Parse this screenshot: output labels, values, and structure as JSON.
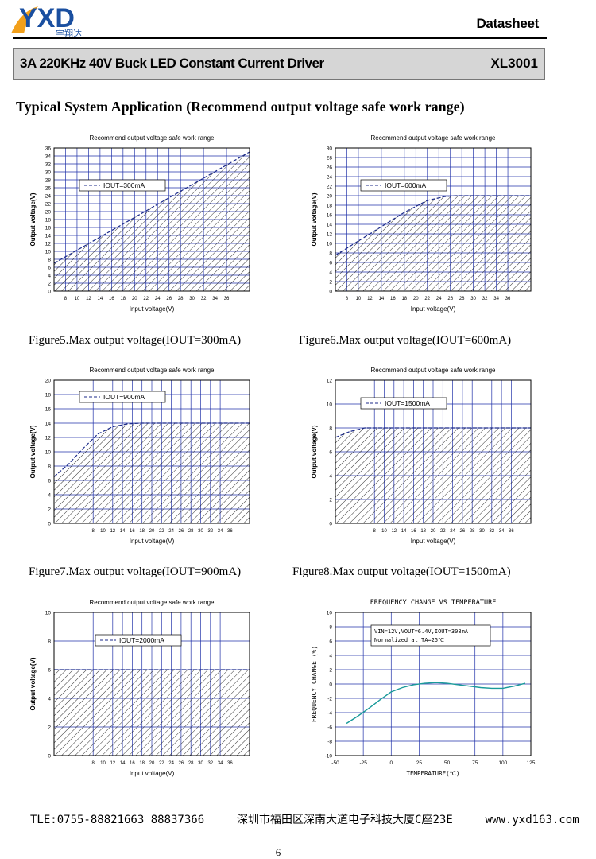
{
  "header": {
    "logo_text": "YXD",
    "logo_subtext": "宇翔达",
    "doc_type": "Datasheet",
    "title": "3A 220KHz 40V Buck LED Constant Current Driver",
    "part": "XL3001"
  },
  "section_title": "Typical System Application (Recommend output voltage safe work range)",
  "captions": [
    "Figure5.Max output voltage(IOUT=300mA)",
    "Figure6.Max output voltage(IOUT=600mA)",
    "Figure7.Max output voltage(IOUT=900mA)",
    "Figure8.Max output voltage(IOUT=1500mA)"
  ],
  "footer": {
    "tel": "TLE:0755-88821663  88837366",
    "address": "深圳市福田区深南大道电子科技大厦C座23E",
    "web": "www.yxd163.com"
  },
  "page_number": "6",
  "chart_data": [
    {
      "type": "area",
      "title": "Recommend output voltage safe work range",
      "xlabel": "Input voltage(V)",
      "ylabel": "Output voltage(V)",
      "xlim": [
        6,
        40
      ],
      "ylim": [
        0,
        36
      ],
      "xticks": [
        8,
        10,
        12,
        14,
        16,
        18,
        20,
        22,
        24,
        26,
        28,
        30,
        32,
        34,
        36
      ],
      "yticks": [
        0,
        2,
        4,
        6,
        8,
        10,
        12,
        14,
        16,
        18,
        20,
        22,
        24,
        26,
        28,
        30,
        32,
        34,
        36
      ],
      "legend": "IOUT=300mA",
      "legend_position": "top-left",
      "grid": true,
      "series": [
        {
          "name": "IOUT=300mA",
          "x": [
            6,
            40
          ],
          "y": [
            7,
            35
          ]
        }
      ]
    },
    {
      "type": "area",
      "title": "Recommend output voltage safe work range",
      "xlabel": "Input voltage(V)",
      "ylabel": "Output voltage(V)",
      "xlim": [
        6,
        40
      ],
      "ylim": [
        0,
        30
      ],
      "xticks": [
        8,
        10,
        12,
        14,
        16,
        18,
        20,
        22,
        24,
        26,
        28,
        30,
        32,
        34,
        36
      ],
      "yticks": [
        0,
        2,
        4,
        6,
        8,
        10,
        12,
        14,
        16,
        18,
        20,
        22,
        24,
        26,
        28,
        30
      ],
      "legend": "IOUT=600mA",
      "legend_position": "top-left",
      "grid": true,
      "series": [
        {
          "name": "IOUT=600mA",
          "x": [
            6,
            10,
            14,
            18,
            22,
            25,
            27,
            29,
            40
          ],
          "y": [
            7.5,
            10.5,
            13.5,
            16.5,
            19,
            19.8,
            20,
            20,
            20
          ]
        }
      ]
    },
    {
      "type": "area",
      "title": "Recommend output voltage safe work range",
      "xlabel": "Input voltage(V)",
      "ylabel": "Output  voltage(V)",
      "xlim": [
        0,
        40
      ],
      "ylim": [
        0,
        20
      ],
      "xticks": [
        8,
        10,
        12,
        14,
        16,
        18,
        20,
        22,
        24,
        26,
        28,
        30,
        32,
        34,
        36
      ],
      "yticks": [
        0,
        2,
        4,
        6,
        8,
        10,
        12,
        14,
        16,
        18,
        20
      ],
      "legend": "IOUT=900mA",
      "legend_position": "top-left",
      "grid": true,
      "series": [
        {
          "name": "IOUT=900mA",
          "x": [
            0,
            3,
            6,
            9,
            12,
            15,
            18,
            40
          ],
          "y": [
            6.5,
            8.3,
            10.5,
            12.5,
            13.5,
            13.9,
            14,
            14
          ]
        }
      ]
    },
    {
      "type": "area",
      "title": "Recommend output voltage safe work range",
      "xlabel": "Input voltage(V)",
      "ylabel": "Output voltage(V)",
      "xlim": [
        0,
        40
      ],
      "ylim": [
        0,
        12
      ],
      "xticks": [
        8,
        10,
        12,
        14,
        16,
        18,
        20,
        22,
        24,
        26,
        28,
        30,
        32,
        34,
        36
      ],
      "yticks": [
        0,
        2,
        4,
        6,
        8,
        10,
        12
      ],
      "legend": "IOUT=1500mA",
      "legend_position": "top-left",
      "grid": true,
      "series": [
        {
          "name": "IOUT=1500mA",
          "x": [
            0,
            3,
            6,
            9,
            40
          ],
          "y": [
            7.2,
            7.7,
            8,
            8,
            8
          ]
        }
      ]
    },
    {
      "type": "area",
      "title": "Recommend output voltage safe work range",
      "xlabel": "Input voltage(V)",
      "ylabel": "Output voltage(V)",
      "xlim": [
        0,
        40
      ],
      "ylim": [
        0,
        10
      ],
      "xticks": [
        8,
        10,
        12,
        14,
        16,
        18,
        20,
        22,
        24,
        26,
        28,
        30,
        32,
        34,
        36
      ],
      "yticks": [
        0,
        2,
        4,
        6,
        8,
        10
      ],
      "legend": "IOUT=2000mA",
      "legend_position": "top-left",
      "grid": true,
      "series": [
        {
          "name": "IOUT=2000mA",
          "x": [
            0,
            40
          ],
          "y": [
            6,
            6
          ]
        }
      ]
    },
    {
      "type": "line",
      "title": "FREQUENCY CHANGE VS TEMPERATURE",
      "xlabel": "TEMPERATURE(℃)",
      "ylabel": "FREQUENCY CHANGE (%)",
      "xlim": [
        -50,
        125
      ],
      "ylim": [
        -10,
        10
      ],
      "xticks": [
        -50,
        -25,
        0,
        25,
        50,
        75,
        100,
        125
      ],
      "yticks": [
        -10,
        -8,
        -6,
        -4,
        -2,
        0,
        2,
        4,
        6,
        8,
        10
      ],
      "legend": [
        "VIN=12V,VOUT=6.4V,IOUT=308mA",
        "Normalized at TA=25℃"
      ],
      "legend_position": "top",
      "grid": true,
      "line_color": "#1a9a9a",
      "series": [
        {
          "x": [
            -40,
            -30,
            -20,
            -10,
            0,
            10,
            20,
            30,
            40,
            50,
            60,
            70,
            80,
            90,
            100,
            110,
            120
          ],
          "y": [
            -5.5,
            -4.5,
            -3.4,
            -2.2,
            -1.1,
            -0.5,
            -0.1,
            0.1,
            0.2,
            0.1,
            -0.1,
            -0.3,
            -0.5,
            -0.6,
            -0.6,
            -0.3,
            0.1
          ]
        }
      ]
    }
  ]
}
